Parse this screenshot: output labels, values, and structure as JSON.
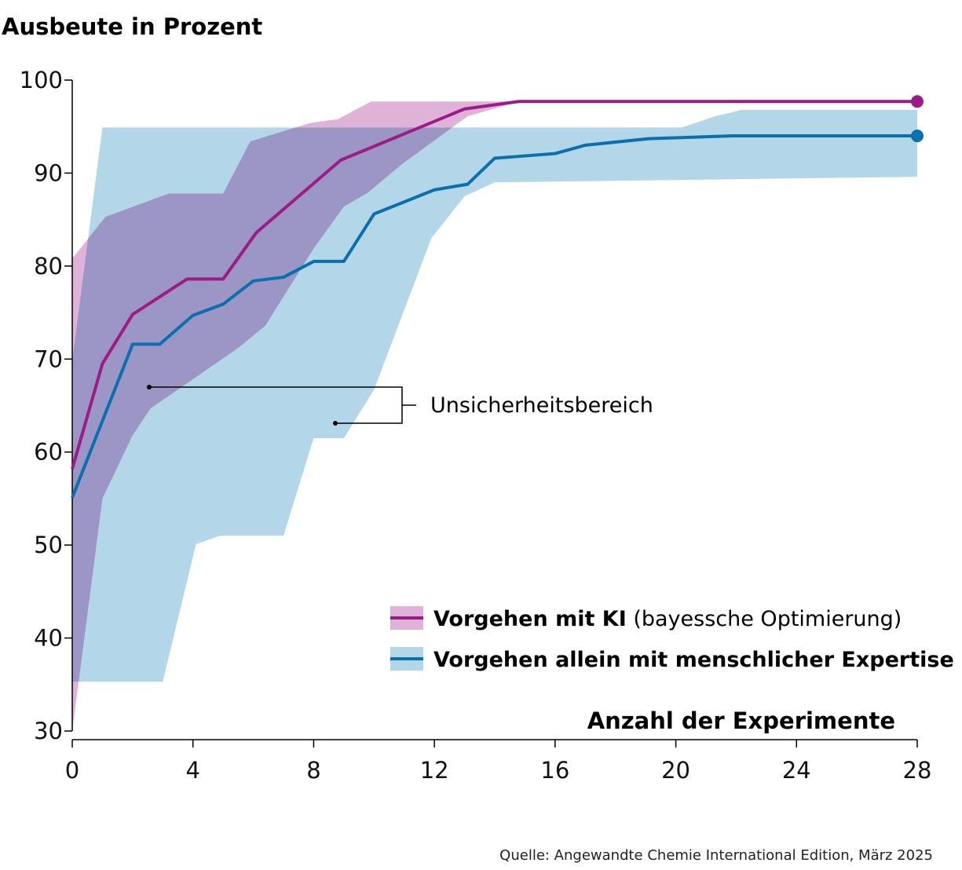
{
  "chart_data": {
    "type": "line",
    "title": "",
    "ylabel": "Ausbeute in Prozent",
    "xlabel": "Anzahl der Experimente",
    "xlim": [
      0,
      28
    ],
    "ylim": [
      30,
      100
    ],
    "xticks": [
      0,
      4,
      8,
      12,
      16,
      20,
      24,
      28
    ],
    "yticks": [
      30,
      40,
      50,
      60,
      70,
      80,
      90,
      100
    ],
    "grid": false,
    "legend_placement": "bottom-right",
    "annotation": "Unsicherheitsbereich",
    "source": "Quelle: Angewandte Chemie International Edition, März 2025",
    "series": [
      {
        "name": "Vorgehen mit KI",
        "name_suffix": "(bayessche Optimierung)",
        "color": "#9b1b87",
        "band_color": "#dfb3d8",
        "x": [
          0,
          1,
          2,
          3.8,
          5,
          6.1,
          8.9,
          13,
          14.8,
          28
        ],
        "y": [
          58.2,
          69.5,
          74.8,
          78.6,
          78.6,
          83.6,
          91.4,
          96.9,
          97.7,
          97.7
        ],
        "band_upper": {
          "x": [
            0,
            1.1,
            3.2,
            5,
            5.9,
            7.9,
            8.8,
            9.9,
            28
          ],
          "y": [
            80.8,
            85.3,
            87.8,
            87.8,
            93.4,
            95.4,
            95.8,
            97.7,
            97.7
          ]
        },
        "band_lower": {
          "x": [
            0,
            1,
            2,
            2.6,
            5.5,
            6.4,
            8,
            9,
            9.8,
            10.9,
            13.1,
            14.8,
            28
          ],
          "y": [
            30,
            55,
            61.8,
            64.7,
            71.2,
            73.6,
            81.9,
            86.4,
            87.9,
            90.9,
            96.1,
            97.7,
            97.7
          ]
        }
      },
      {
        "name": "Vorgehen allein mit menschlicher Expertise",
        "color": "#0a6fae",
        "band_color": "#b3d6e8",
        "x": [
          0,
          2,
          2.9,
          4,
          5,
          6,
          7,
          8,
          9,
          10,
          12,
          13.1,
          14,
          16,
          17,
          19.1,
          21.9,
          28
        ],
        "y": [
          55.1,
          71.6,
          71.6,
          74.7,
          75.9,
          78.4,
          78.8,
          80.5,
          80.5,
          85.6,
          88.2,
          88.8,
          91.6,
          92.1,
          93.0,
          93.7,
          94.0,
          94.0
        ],
        "band_upper": {
          "x": [
            0,
            1,
            20.2,
            21.3,
            22.2,
            28
          ],
          "y": [
            69.8,
            94.9,
            94.9,
            96.1,
            96.8,
            96.8
          ]
        },
        "band_lower": {
          "x": [
            0,
            3,
            4.1,
            4.9,
            7,
            8,
            9,
            10,
            11.9,
            13,
            14,
            28
          ],
          "y": [
            35.3,
            35.3,
            50.1,
            51,
            51,
            61.5,
            61.5,
            66.7,
            83,
            87.5,
            89,
            89.6
          ]
        }
      }
    ]
  }
}
